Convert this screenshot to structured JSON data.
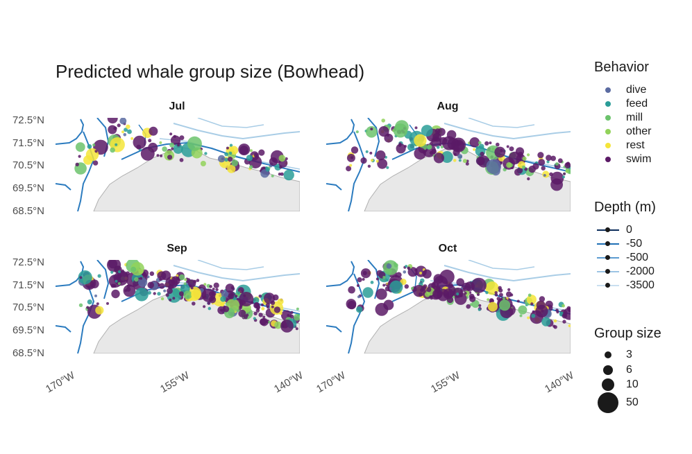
{
  "title": "Predicted whale group size (Bowhead)",
  "panels": [
    {
      "label": "Jul",
      "density": 0.45
    },
    {
      "label": "Aug",
      "density": 0.75
    },
    {
      "label": "Sep",
      "density": 1.0
    },
    {
      "label": "Oct",
      "density": 0.85
    }
  ],
  "axes": {
    "y_ticks": [
      "72.5°N",
      "71.5°N",
      "70.5°N",
      "69.5°N",
      "68.5°N"
    ],
    "x_ticks": [
      "170°W",
      "155°W",
      "140°W"
    ]
  },
  "legends": {
    "behavior": {
      "title": "Behavior",
      "items": [
        {
          "label": "dive",
          "color": "#5b6ba1"
        },
        {
          "label": "feed",
          "color": "#2a9d98"
        },
        {
          "label": "mill",
          "color": "#6cc36c"
        },
        {
          "label": "other",
          "color": "#92d25a"
        },
        {
          "label": "rest",
          "color": "#f5e53a"
        },
        {
          "label": "swim",
          "color": "#5b1a66"
        }
      ]
    },
    "depth": {
      "title": "Depth (m)",
      "items": [
        {
          "label": "0",
          "color": "#0b2c5a"
        },
        {
          "label": "-50",
          "color": "#1f6fb5"
        },
        {
          "label": "-500",
          "color": "#5b9bd0"
        },
        {
          "label": "-2000",
          "color": "#9cc4e4"
        },
        {
          "label": "-3500",
          "color": "#c9dff0"
        }
      ]
    },
    "group_size": {
      "title": "Group size",
      "items": [
        {
          "label": "3",
          "value": 3
        },
        {
          "label": "6",
          "value": 6
        },
        {
          "label": "10",
          "value": 10
        },
        {
          "label": "50",
          "value": 50
        }
      ]
    }
  },
  "colors": {
    "land": "#e8e8e8",
    "coast": "#b0b0b0",
    "contour_deep": "#a9cde6",
    "contour_shallow": "#2b7bbf"
  }
}
